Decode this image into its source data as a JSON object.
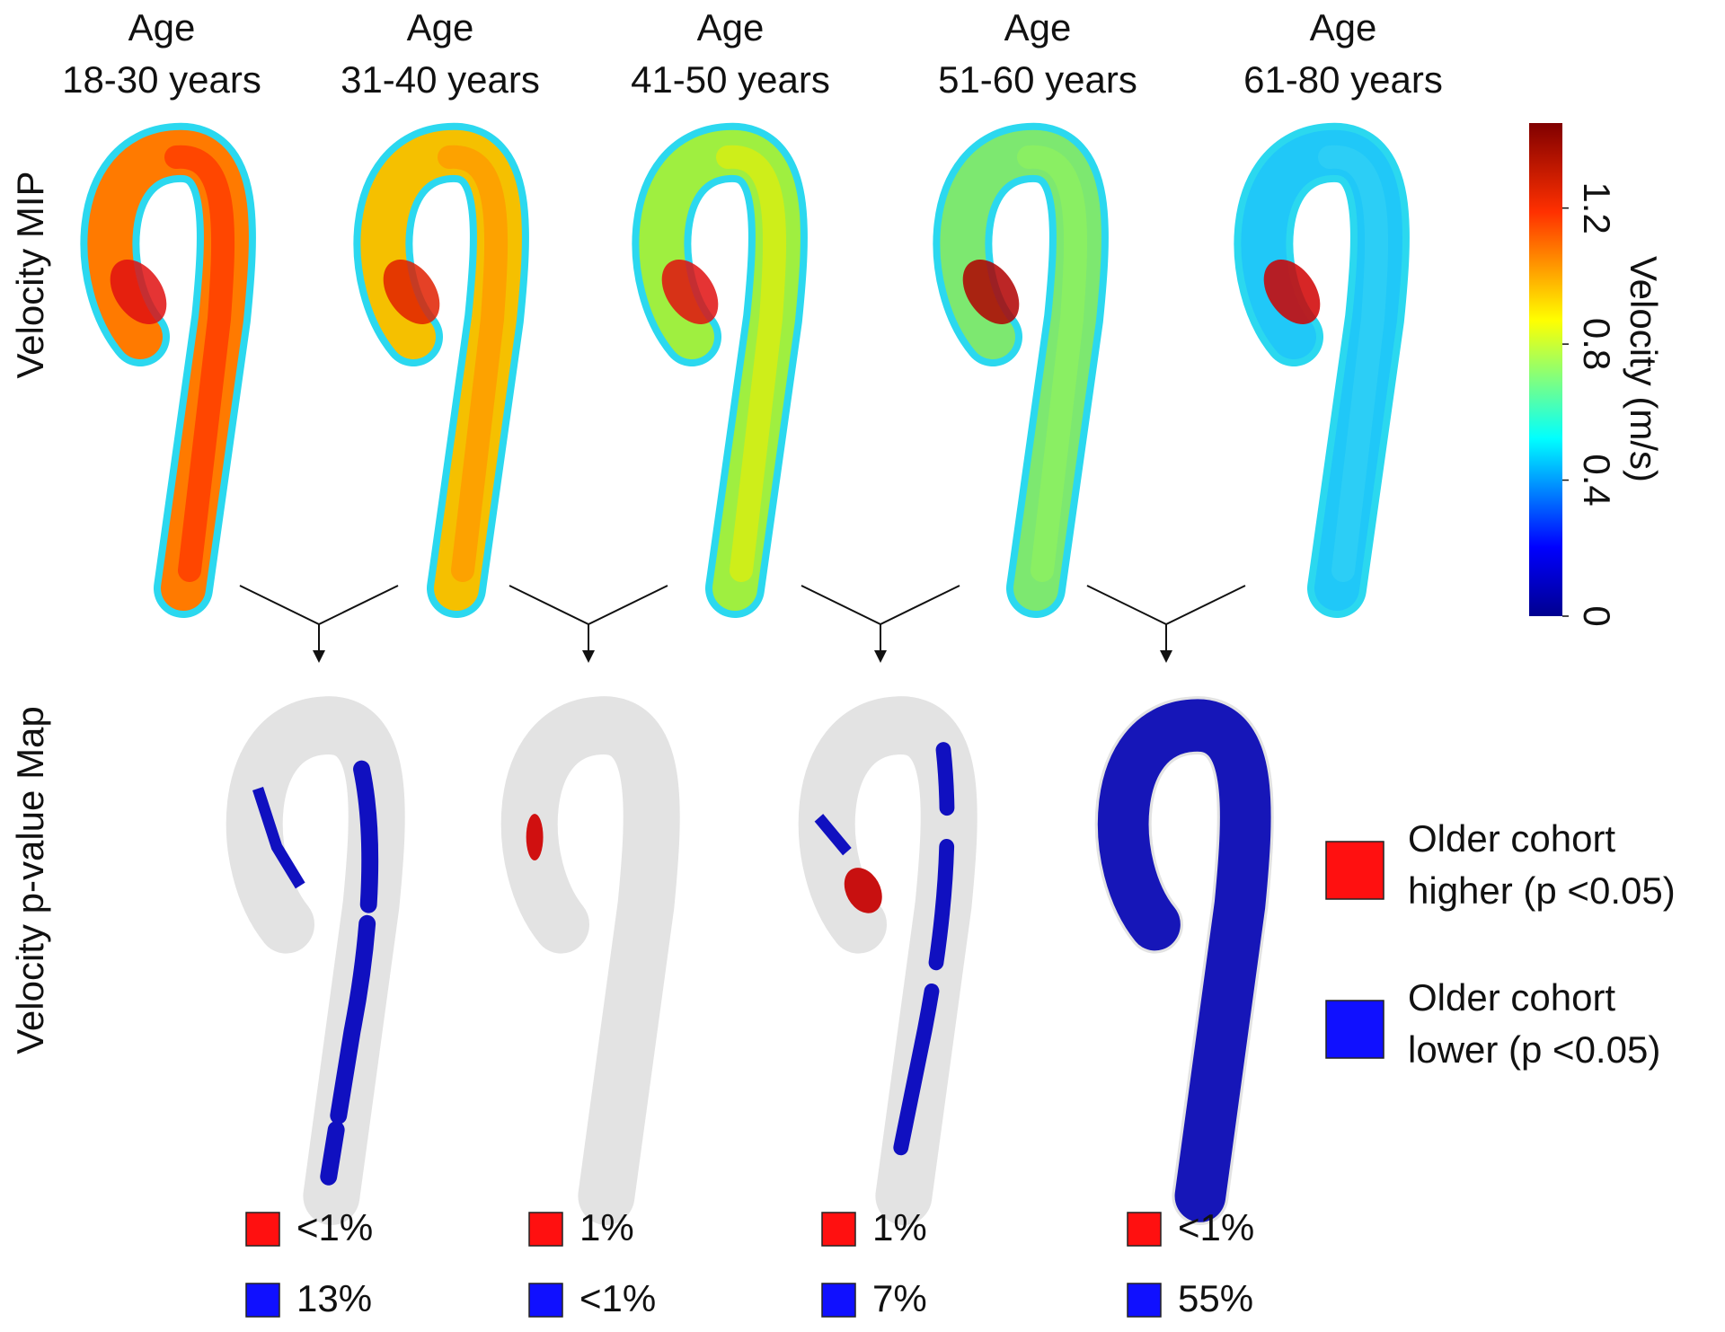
{
  "columns": [
    {
      "line1": "Age",
      "line2": "18-30 years"
    },
    {
      "line1": "Age",
      "line2": "31-40 years"
    },
    {
      "line1": "Age",
      "line2": "41-50 years"
    },
    {
      "line1": "Age",
      "line2": "51-60 years"
    },
    {
      "line1": "Age",
      "line2": "61-80 years"
    }
  ],
  "row_labels": [
    "Velocity MIP",
    "Velocity p-value Map"
  ],
  "colorbar": {
    "label": "Velocity (m/s)",
    "ticks": [
      0,
      0.4,
      0.8,
      1.2
    ],
    "range": [
      0,
      1.45
    ]
  },
  "legend": [
    {
      "line1": "Older cohort",
      "line2": "higher (p <0.05)"
    },
    {
      "line1": "Older cohort",
      "line2": "lower (p <0.05)"
    }
  ],
  "comparisons": [
    {
      "higher": "<1%",
      "lower": "13%"
    },
    {
      "higher": "1%",
      "lower": "<1%"
    },
    {
      "higher": "1%",
      "lower": "7%"
    },
    {
      "higher": "<1%",
      "lower": "55%"
    }
  ]
}
